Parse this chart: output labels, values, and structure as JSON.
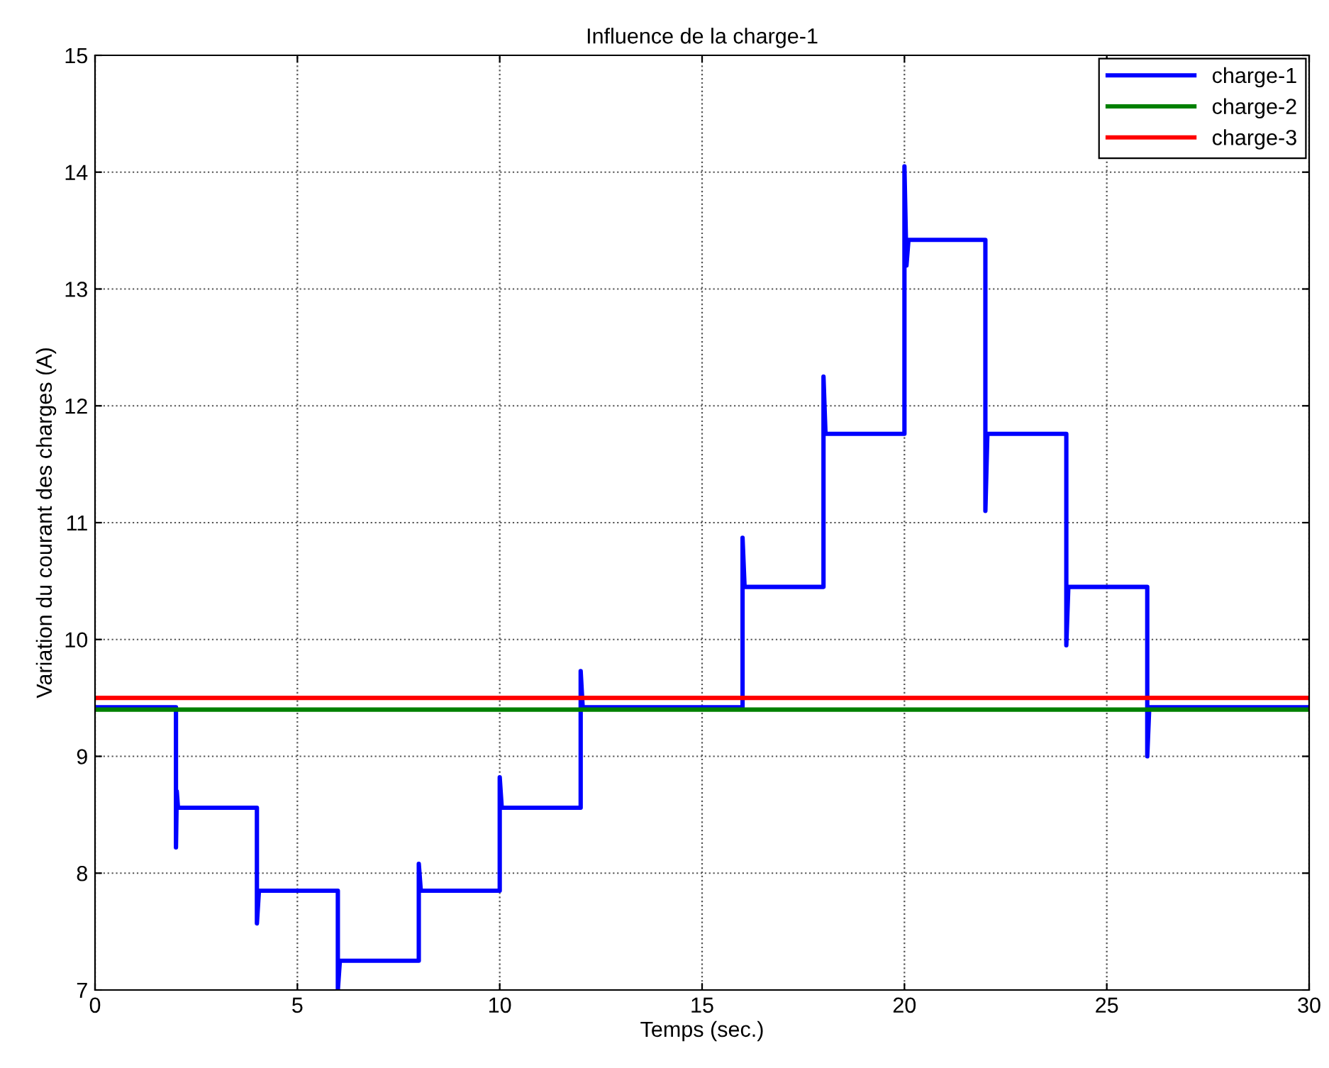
{
  "chart_data": {
    "type": "line",
    "title": "Influence de la charge-1",
    "xlabel": "Temps (sec.)",
    "ylabel": "Variation du courant des charges (A)",
    "series": [
      {
        "name": "charge-1",
        "color": "#0000ff",
        "x": [
          0,
          2,
          2,
          2.02,
          2.05,
          4,
          4,
          4.05,
          6,
          6,
          6.05,
          8,
          8,
          8.05,
          10,
          10,
          10.05,
          12,
          12,
          12.05,
          16,
          16,
          16.05,
          18,
          18,
          18.05,
          20,
          20,
          20.05,
          20.1,
          22,
          22,
          22.05,
          24,
          24,
          24.05,
          26,
          26,
          26.05,
          30
        ],
        "values": [
          9.42,
          9.42,
          8.22,
          8.7,
          8.56,
          8.56,
          7.57,
          7.85,
          7.85,
          7.0,
          7.25,
          7.25,
          8.08,
          7.85,
          7.85,
          8.82,
          8.56,
          8.56,
          9.73,
          9.42,
          9.42,
          10.87,
          10.45,
          10.45,
          12.25,
          11.76,
          11.76,
          14.05,
          13.2,
          13.42,
          13.42,
          11.1,
          11.76,
          11.76,
          9.95,
          10.45,
          10.45,
          9.0,
          9.42,
          9.42
        ]
      },
      {
        "name": "charge-2",
        "color": "#008000",
        "x": [
          0,
          30
        ],
        "values": [
          9.4,
          9.4
        ]
      },
      {
        "name": "charge-3",
        "color": "#ff0000",
        "x": [
          0,
          30
        ],
        "values": [
          9.5,
          9.5
        ]
      }
    ],
    "xlim": [
      0,
      30
    ],
    "ylim": [
      7,
      15
    ],
    "xticks": [
      0,
      5,
      10,
      15,
      20,
      25,
      30
    ],
    "yticks": [
      7,
      8,
      9,
      10,
      11,
      12,
      13,
      14,
      15
    ],
    "grid": true,
    "legend": "top right",
    "line_style": "solid",
    "marker": "none"
  }
}
